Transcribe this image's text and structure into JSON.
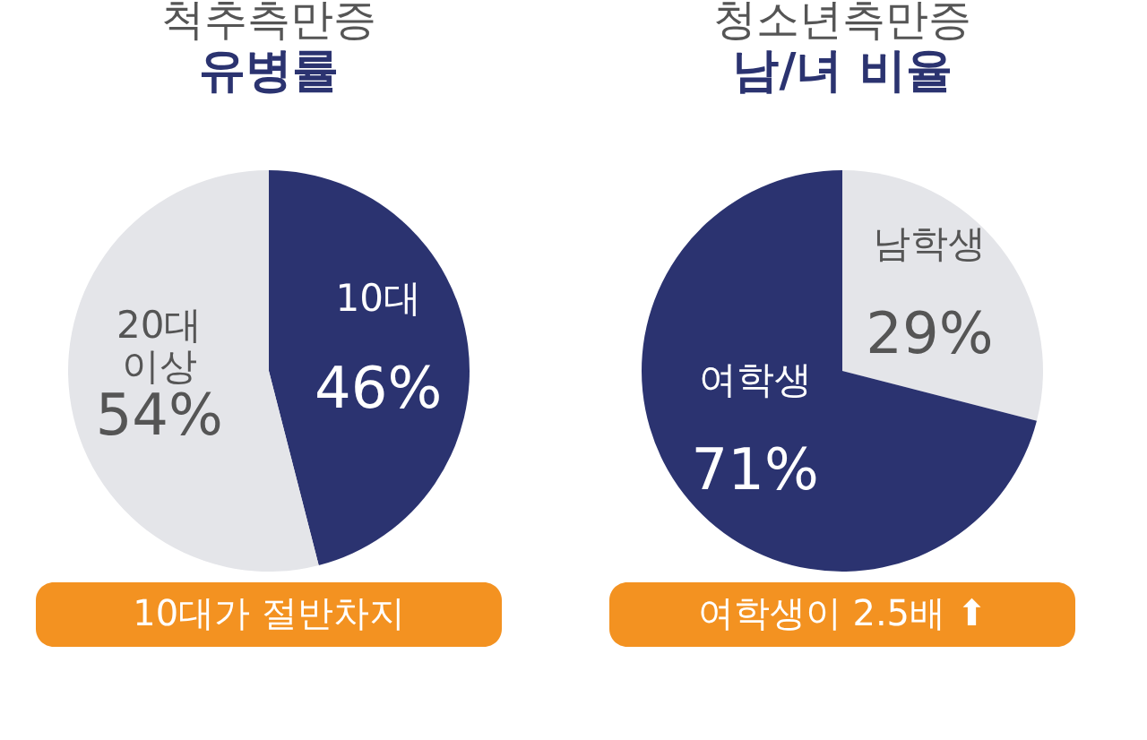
{
  "chart_data": [
    {
      "type": "pie",
      "title": "척추측만증",
      "subtitle": "유병률",
      "categories": [
        "10대",
        "20대 이상"
      ],
      "values": [
        46,
        54
      ],
      "colors": [
        "#2b3370",
        "#e4e5e9"
      ],
      "value_labels": [
        "46%",
        "54%"
      ],
      "annotations": [
        "10대가 절반차지"
      ]
    },
    {
      "type": "pie",
      "title": "청소년측만증",
      "subtitle": "남/녀 비율",
      "categories": [
        "남학생",
        "여학생"
      ],
      "values": [
        29,
        71
      ],
      "colors": [
        "#e4e5e9",
        "#2b3370"
      ],
      "value_labels": [
        "29%",
        "71%"
      ],
      "annotations": [
        "여학생이 2.5배 ⬆"
      ]
    }
  ]
}
